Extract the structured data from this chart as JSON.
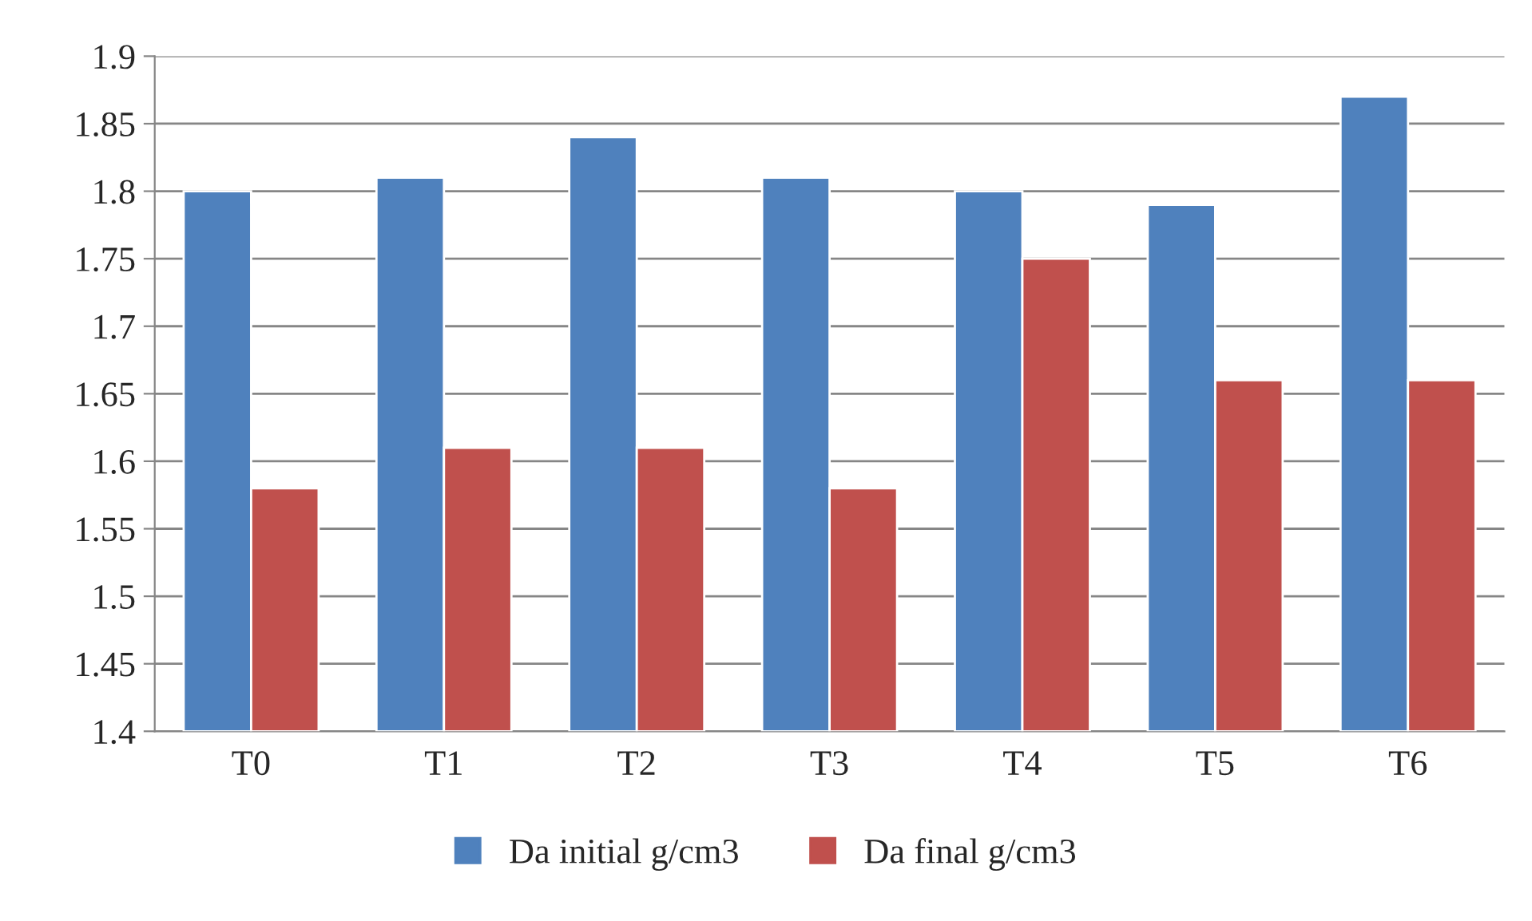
{
  "chart_data": {
    "type": "bar",
    "categories": [
      "T0",
      "T1",
      "T2",
      "T3",
      "T4",
      "T5",
      "T6"
    ],
    "series": [
      {
        "name": "Da initial g/cm3",
        "color": "#4f81bd",
        "values": [
          1.8,
          1.81,
          1.84,
          1.81,
          1.8,
          1.79,
          1.87
        ]
      },
      {
        "name": "Da final g/cm3",
        "color": "#c0504d",
        "values": [
          1.58,
          1.61,
          1.61,
          1.58,
          1.75,
          1.66,
          1.66
        ]
      }
    ],
    "ylim": [
      1.4,
      1.9
    ],
    "yticks": [
      1.4,
      1.45,
      1.5,
      1.55,
      1.6,
      1.65,
      1.7,
      1.75,
      1.8,
      1.85,
      1.9
    ],
    "grid": "y",
    "legend": "bottom"
  }
}
